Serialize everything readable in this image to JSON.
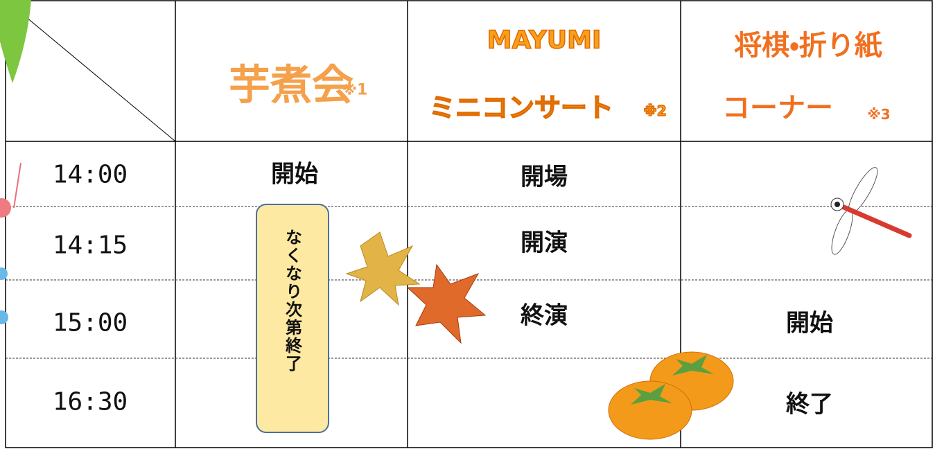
{
  "header": {
    "imoni": {
      "title": "芋煮会",
      "note": "※1"
    },
    "concert": {
      "title_lines": [
        "MAYUMI",
        "ミニコンサート"
      ],
      "note": "※2"
    },
    "shogi": {
      "title_lines": [
        "将棋・折り紙",
        "コーナー"
      ],
      "note": "※3"
    }
  },
  "table": {
    "rows": [
      {
        "time": "14:00",
        "imoni": "開始",
        "concert": "開場"
      },
      {
        "time": "14:15",
        "concert": "開演"
      },
      {
        "time": "15:00",
        "concert": "終演",
        "shogi": "開始"
      },
      {
        "time": "16:30",
        "shogi": "終了"
      }
    ],
    "imoni_box": "なくなり次第終了"
  }
}
